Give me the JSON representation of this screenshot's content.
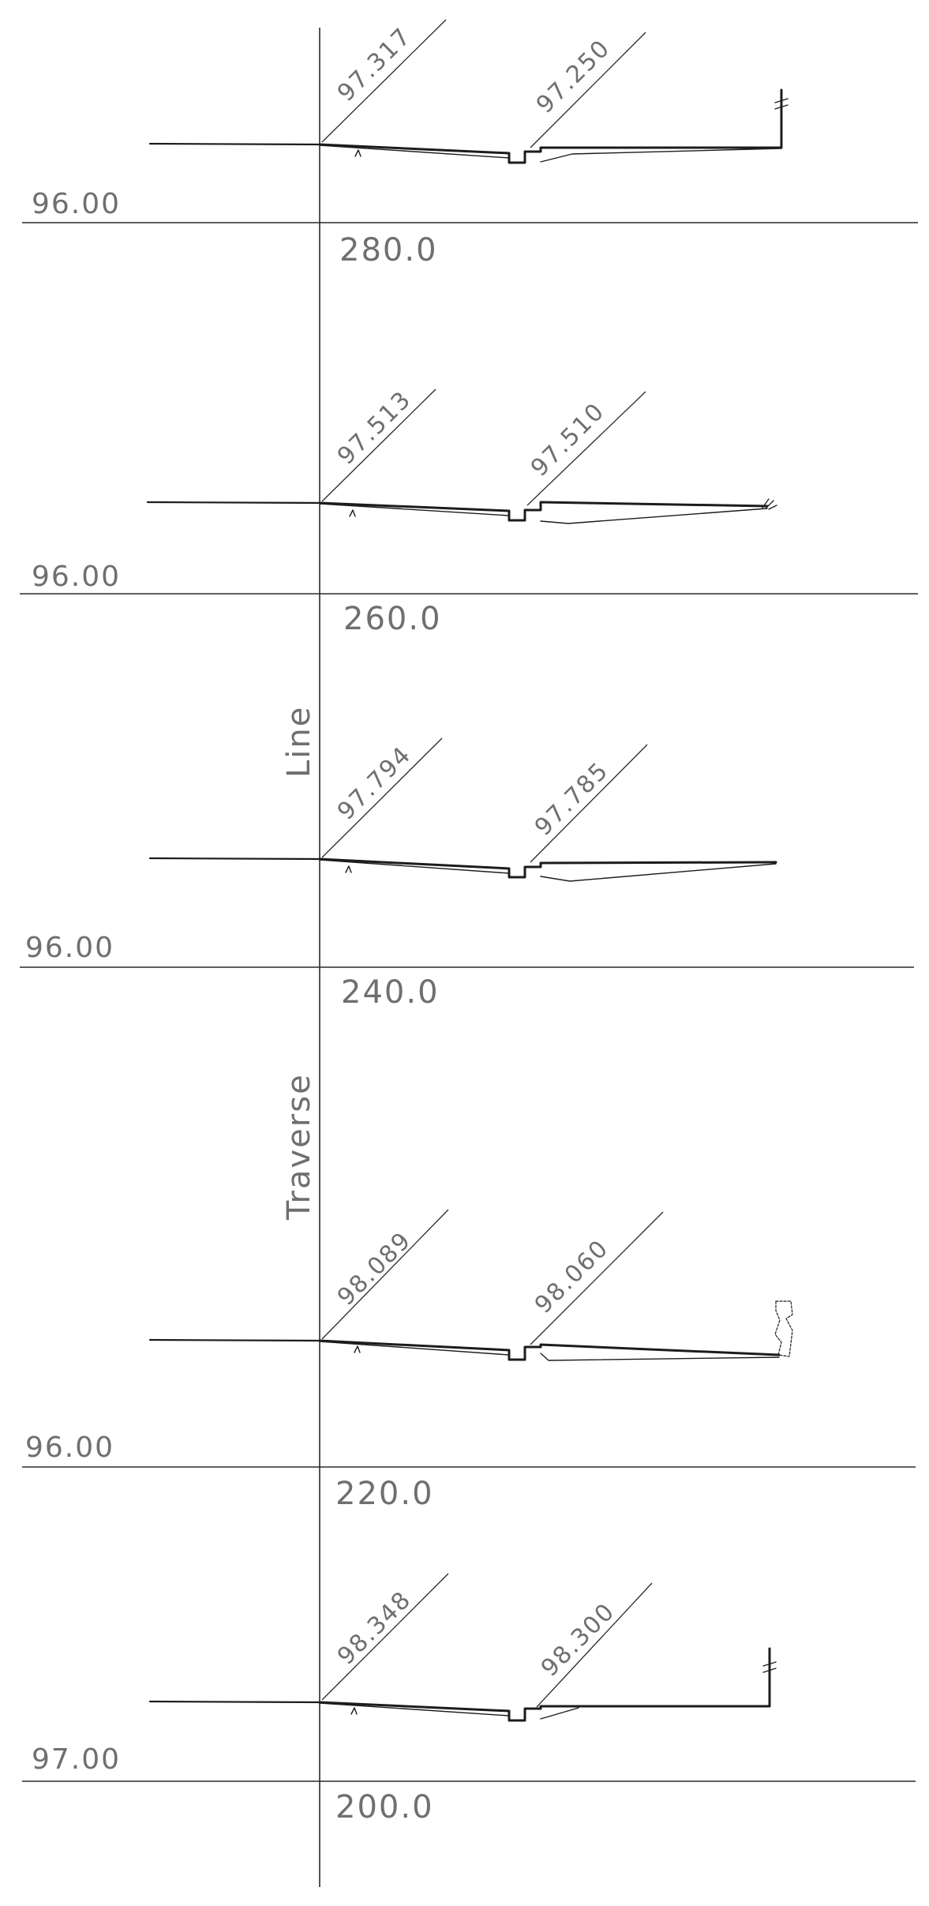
{
  "axis_label": [
    "Traverse",
    "Line"
  ],
  "sections": [
    {
      "chainage": "280.0",
      "datum": "96.00",
      "levels": [
        "97.317",
        "97.250"
      ],
      "edge": "fence"
    },
    {
      "chainage": "260.0",
      "datum": "96.00",
      "levels": [
        "97.513",
        "97.510"
      ],
      "edge": "grass"
    },
    {
      "chainage": "240.0",
      "datum": "96.00",
      "levels": [
        "97.794",
        "97.785"
      ],
      "edge": "none"
    },
    {
      "chainage": "220.0",
      "datum": "96.00",
      "levels": [
        "98.089",
        "98.060"
      ],
      "edge": "bush"
    },
    {
      "chainage": "200.0",
      "datum": "97.00",
      "levels": [
        "98.348",
        "98.300"
      ],
      "edge": "fence"
    }
  ]
}
